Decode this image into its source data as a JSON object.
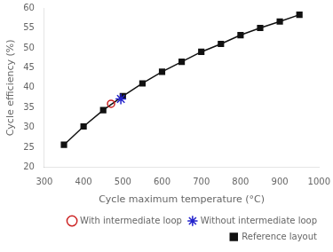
{
  "chart_data": {
    "type": "line",
    "xlabel": "Cycle maximum temperature (°C)",
    "ylabel": "Cycle efficiency (%)",
    "series": [
      {
        "name": "With intermediate loop",
        "color": "#cc2222",
        "marker": "circle",
        "line_style": "none",
        "x": [
          470
        ],
        "values": [
          36.0
        ]
      },
      {
        "name": "Without intermediate loop",
        "color": "#2222cc",
        "marker": "star",
        "line_style": "none",
        "x": [
          495
        ],
        "values": [
          37.2
        ]
      },
      {
        "name": "Reference layout",
        "color": "#111111",
        "marker": "square",
        "line_style": "solid",
        "x": [
          350,
          400,
          450,
          500,
          550,
          600,
          650,
          700,
          750,
          800,
          850,
          900,
          950
        ],
        "values": [
          25.7,
          30.3,
          34.4,
          37.9,
          41.1,
          44.0,
          46.5,
          49.0,
          51.0,
          53.2,
          55.0,
          56.6,
          58.3
        ]
      }
    ],
    "xlim": [
      300,
      1000
    ],
    "ylim": [
      20,
      60
    ],
    "xticks": [
      300,
      400,
      500,
      600,
      700,
      800,
      900,
      1000
    ],
    "yticks": [
      20,
      25,
      30,
      35,
      40,
      45,
      50,
      55,
      60
    ],
    "grid": false,
    "legend": "lower right"
  }
}
